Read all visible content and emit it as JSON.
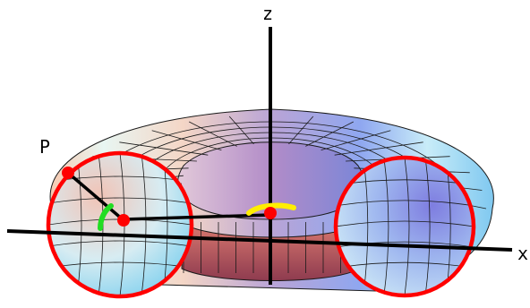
{
  "labels": {
    "point": "P",
    "z_axis": "z",
    "x_axis": "x"
  },
  "colors": {
    "cross_section": "#ff0000",
    "arc_minor": "#22dd22",
    "arc_major": "#ffee00",
    "axis": "#000000",
    "mesh": "#1a1a1a"
  }
}
